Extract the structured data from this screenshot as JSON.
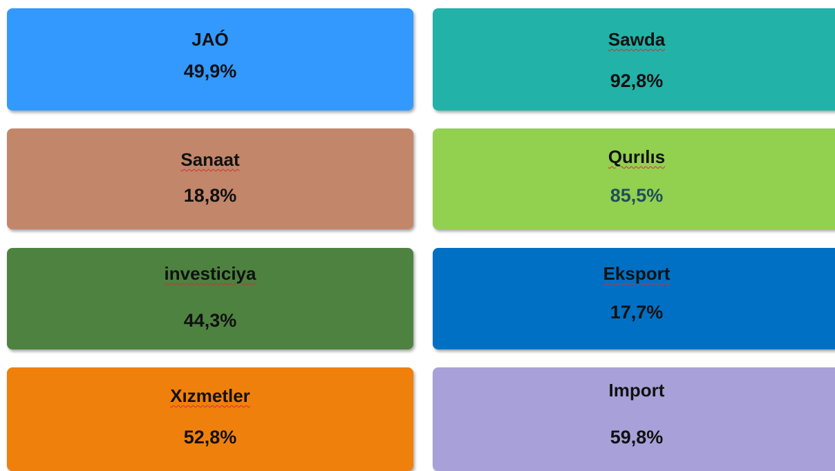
{
  "tiles": [
    {
      "label": "JAÓ",
      "value": "49,9%"
    },
    {
      "label": "Sawda",
      "value": "92,8%"
    },
    {
      "label": "Sanaat",
      "value": "18,8%"
    },
    {
      "label": "Qurılıs",
      "value": "85,5%"
    },
    {
      "label": "investiciya",
      "value": "44,3%"
    },
    {
      "label": "Eksport",
      "value": "17,7%"
    },
    {
      "label": "Xızmetler",
      "value": "52,8%"
    },
    {
      "label": "Import",
      "value": "59,8%"
    }
  ]
}
